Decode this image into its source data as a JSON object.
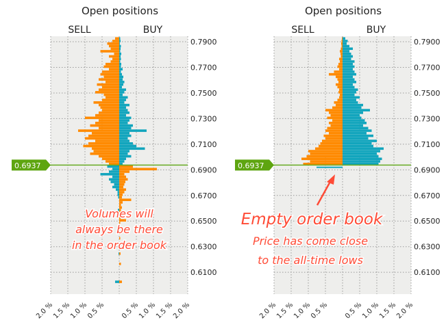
{
  "chart_data": [
    {
      "type": "bar",
      "orientation": "horizontal-diverging",
      "title": "Open positions",
      "left_label": "SELL",
      "right_label": "BUY",
      "current_price": "0.6937",
      "current_price_value": 0.6937,
      "ylim": [
        0.593,
        0.7943
      ],
      "xlim_percent": [
        -2.0,
        2.0
      ],
      "y_ticks": [
        "0.7900",
        "0.7700",
        "0.7500",
        "0.7300",
        "0.7100",
        "0.6900",
        "0.6700",
        "0.6500",
        "0.6300",
        "0.6100"
      ],
      "x_ticks": [
        "2.0 %",
        "1.5 %",
        "1.0 %",
        "0.5 %",
        "",
        "0.5 %",
        "1.0 %",
        "1.5 %",
        "2.0 %"
      ],
      "grid": true,
      "colors": {
        "orange": "#ff8a00",
        "teal": "#12a5bd",
        "price_line": "#66aa22"
      },
      "levels_start": 0.793,
      "level_step": -0.002,
      "left_values": [
        0.12,
        0.2,
        0.35,
        0.3,
        0.25,
        0.55,
        0.15,
        0.3,
        0.2,
        0.25,
        0.4,
        0.45,
        0.3,
        0.5,
        0.55,
        0.45,
        0.6,
        0.4,
        0.65,
        0.5,
        0.6,
        0.7,
        0.45,
        0.4,
        0.5,
        0.75,
        0.6,
        0.55,
        0.5,
        0.6,
        0.7,
        1.0,
        0.6,
        0.7,
        0.85,
        0.6,
        1.2,
        0.8,
        0.9,
        1.0,
        0.7,
        0.9,
        1.05,
        0.8,
        0.75,
        0.85,
        0.6,
        0.5,
        0.4,
        0.3,
        0.35,
        0.2,
        0.3,
        0.55,
        0.2,
        0.3,
        0.25,
        0.15,
        0.2,
        0.1,
        0.05,
        0.05,
        0.03,
        0.0,
        0.0,
        0.0,
        0.0,
        0.04,
        0.0,
        0.0,
        0.0,
        0.0,
        0.0,
        0.0,
        0.0,
        0.0,
        0.0,
        0.0,
        0.0,
        0.0,
        0.0,
        0.0,
        0.0,
        0.0,
        0.02,
        0.0,
        0.0,
        0.0,
        0.0,
        0.0,
        0.0,
        0.0,
        0.0,
        0.0,
        0.0,
        0.12,
        0.0,
        0.0,
        0.0
      ],
      "right_values": [
        0.03,
        0.04,
        0.02,
        0.05,
        0.04,
        0.03,
        0.06,
        0.04,
        0.05,
        0.03,
        0.06,
        0.05,
        0.1,
        0.05,
        0.08,
        0.12,
        0.1,
        0.15,
        0.12,
        0.08,
        0.2,
        0.15,
        0.1,
        0.25,
        0.2,
        0.15,
        0.3,
        0.2,
        0.25,
        0.3,
        0.2,
        0.35,
        0.3,
        0.25,
        0.4,
        0.35,
        0.8,
        0.3,
        0.35,
        0.25,
        0.3,
        0.4,
        0.5,
        0.75,
        0.3,
        0.25,
        0.35,
        0.2,
        0.15,
        0.1,
        0.4,
        1.1,
        0.3,
        0.15,
        0.2,
        0.25,
        0.18,
        0.15,
        0.12,
        0.2,
        0.15,
        0.1,
        0.08,
        0.35,
        0.1,
        0.05,
        0.08,
        0.05,
        0.03,
        0.05,
        0.04,
        0.2,
        0.03,
        0.02,
        0.0,
        0.0,
        0.02,
        0.0,
        0.03,
        0.0,
        0.0,
        0.0,
        0.02,
        0.0,
        0.04,
        0.0,
        0.0,
        0.0,
        0.05,
        0.0,
        0.0,
        0.0,
        0.0,
        0.0,
        0.0,
        0.08,
        0.0,
        0.0,
        0.0
      ],
      "annotation": [
        "Volumes will",
        "always be there",
        "in the order book"
      ]
    },
    {
      "type": "bar",
      "orientation": "horizontal-diverging",
      "title": "Open positions",
      "left_label": "SELL",
      "right_label": "BUY",
      "current_price": "0.6937",
      "current_price_value": 0.6937,
      "ylim": [
        0.593,
        0.7943
      ],
      "xlim_percent": [
        -2.0,
        2.0
      ],
      "y_ticks": [
        "0.7900",
        "0.7700",
        "0.7500",
        "0.7300",
        "0.7100",
        "0.6900",
        "0.6700",
        "0.6500",
        "0.6300",
        "0.6100"
      ],
      "x_ticks": [
        "2.0 %",
        "1.5 %",
        "1.0 %",
        "0.5 %",
        "",
        "0.5 %",
        "1.0 %",
        "1.5 %",
        "2.0 %"
      ],
      "grid": true,
      "colors": {
        "orange": "#ff8a00",
        "teal": "#12a5bd",
        "price_line": "#66aa22"
      },
      "levels_start": 0.793,
      "level_step": -0.002,
      "left_values": [
        0.02,
        0.03,
        0.04,
        0.03,
        0.05,
        0.08,
        0.06,
        0.05,
        0.1,
        0.08,
        0.12,
        0.15,
        0.1,
        0.25,
        0.4,
        0.2,
        0.15,
        0.12,
        0.2,
        0.15,
        0.1,
        0.12,
        0.08,
        0.1,
        0.15,
        0.25,
        0.2,
        0.3,
        0.5,
        0.4,
        0.35,
        0.45,
        0.3,
        0.4,
        0.35,
        0.45,
        0.5,
        0.4,
        0.55,
        0.5,
        0.6,
        0.65,
        0.7,
        0.8,
        1.0,
        0.95,
        1.05,
        1.2,
        0.95,
        1.15
      ],
      "right_values": [
        0.08,
        0.15,
        0.12,
        0.2,
        0.3,
        0.2,
        0.25,
        0.3,
        0.25,
        0.35,
        0.3,
        0.35,
        0.3,
        0.35,
        0.4,
        0.3,
        0.35,
        0.4,
        0.3,
        0.35,
        0.45,
        0.4,
        0.35,
        0.5,
        0.4,
        0.45,
        0.6,
        0.55,
        0.8,
        0.6,
        0.5,
        0.55,
        0.65,
        0.7,
        0.6,
        0.75,
        0.85,
        0.7,
        0.9,
        0.75,
        1.0,
        0.85,
        0.9,
        1.2,
        1.1,
        1.0,
        1.05,
        1.15,
        1.1,
        1.05
      ],
      "annotation_title": "Empty order book",
      "annotation": [
        "Price has come close",
        "to the all-time lows"
      ]
    }
  ]
}
